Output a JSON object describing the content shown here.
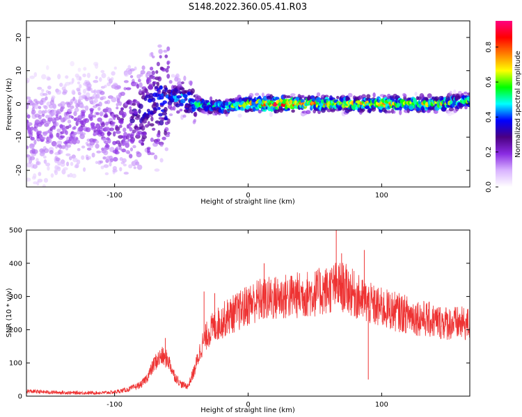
{
  "figure": {
    "title": "S148.2022.360.05.41.R03"
  },
  "chart_data": [
    {
      "type": "heatmap",
      "name": "spectrogram",
      "xlabel": "Height of straight line (km)",
      "ylabel": "Frequency (Hz)",
      "xlim": [
        -166,
        166
      ],
      "ylim": [
        -25,
        25
      ],
      "xticks": [
        -100,
        0,
        100
      ],
      "yticks": [
        -20,
        -10,
        0,
        10,
        20
      ],
      "colorbar": {
        "label": "Normalized spectral amplitude",
        "range": [
          0.0,
          0.95
        ],
        "ticks": [
          0.0,
          0.2,
          0.4,
          0.6,
          0.8
        ],
        "colors": [
          "#ffffff",
          "#d9b3ff",
          "#8a2be2",
          "#4b0082",
          "#0000ff",
          "#00ffff",
          "#00ff00",
          "#ffff00",
          "#ff8000",
          "#ff0000",
          "#ff0080"
        ]
      },
      "ridge": {
        "x": [
          -166,
          -140,
          -120,
          -100,
          -90,
          -80,
          -70,
          -60,
          -50,
          -40,
          -20,
          0,
          20,
          40,
          60,
          80,
          100,
          120,
          140,
          166
        ],
        "frequency": [
          -8,
          -7,
          -6,
          -7,
          -5,
          -3,
          0,
          2,
          2,
          0,
          -1,
          0,
          0,
          0,
          0,
          0,
          0,
          0,
          0,
          1
        ],
        "peak_amplitude": [
          0.2,
          0.2,
          0.2,
          0.25,
          0.3,
          0.35,
          0.4,
          0.45,
          0.5,
          0.55,
          0.6,
          0.7,
          0.9,
          0.8,
          0.75,
          0.7,
          0.8,
          0.7,
          0.7,
          0.6
        ]
      },
      "grid": false
    },
    {
      "type": "line",
      "name": "snr",
      "xlabel": "Height of straight line (km)",
      "ylabel": "SNR (10 * v/v)",
      "xlim": [
        -166,
        166
      ],
      "ylim": [
        0,
        500
      ],
      "xticks": [
        -100,
        0,
        100
      ],
      "yticks": [
        0,
        100,
        200,
        300,
        400,
        500
      ],
      "color": "#ee3333",
      "x": [
        -166,
        -150,
        -130,
        -110,
        -100,
        -90,
        -80,
        -75,
        -70,
        -65,
        -60,
        -55,
        -50,
        -45,
        -40,
        -35,
        -30,
        -25,
        -20,
        -15,
        -10,
        -5,
        0,
        5,
        10,
        20,
        30,
        40,
        50,
        60,
        65,
        70,
        75,
        80,
        85,
        90,
        95,
        100,
        110,
        120,
        130,
        140,
        150,
        160,
        166
      ],
      "y": [
        15,
        12,
        10,
        10,
        12,
        20,
        35,
        60,
        100,
        120,
        110,
        60,
        35,
        30,
        80,
        150,
        190,
        210,
        225,
        240,
        250,
        260,
        275,
        285,
        290,
        295,
        300,
        305,
        310,
        320,
        330,
        330,
        320,
        305,
        290,
        280,
        270,
        265,
        255,
        245,
        235,
        225,
        220,
        218,
        215
      ],
      "peaks": {
        "x": [
          -62,
          -33,
          -25,
          12,
          66,
          70,
          87,
          90
        ],
        "y": [
          175,
          315,
          310,
          400,
          500,
          430,
          440,
          50
        ]
      },
      "grid": false
    }
  ]
}
